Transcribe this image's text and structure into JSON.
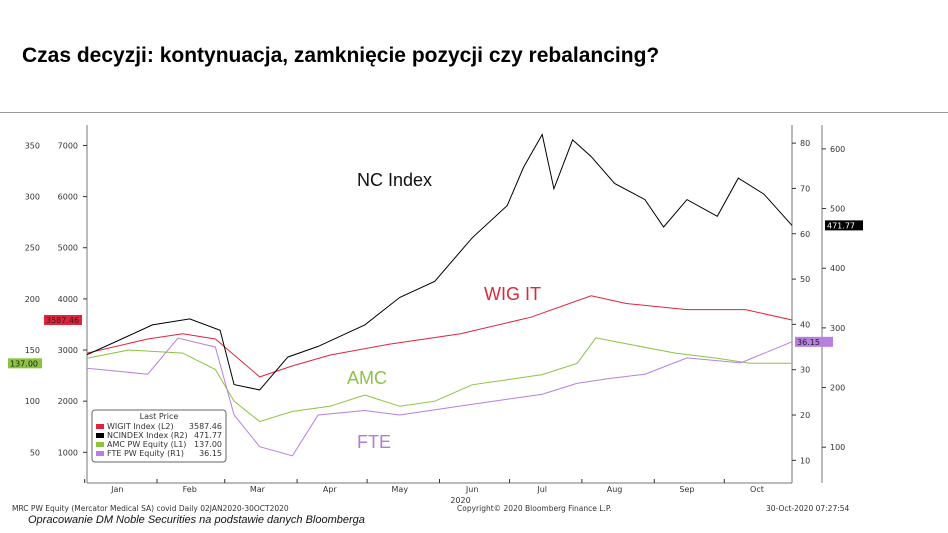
{
  "title": "Czas decyzji: kontynuacja, zamknięcie pozycji czy rebalancing?",
  "source_note": "Opracowanie DM Noble Securities na podstawie danych Bloomberga",
  "footer": {
    "left": "MRC PW Equity (Mercator Medical SA) covid  Daily 02JAN2020-30OCT2020",
    "center": "Copyright© 2020 Bloomberg Finance L.P.",
    "right": "30-Oct-2020 07:27:54"
  },
  "chart_data": {
    "type": "line",
    "x_range": [
      "2020-01-02",
      "2020-10-30"
    ],
    "x_tick_labels": [
      "Jan",
      "Feb",
      "Mar",
      "Apr",
      "May",
      "Jun",
      "Jul",
      "Aug",
      "Sep",
      "Oct"
    ],
    "x_year_label": "2020",
    "axes": {
      "L1": {
        "range": [
          20,
          370
        ],
        "ticks": [
          50,
          100,
          150,
          200,
          250,
          300,
          350
        ]
      },
      "L2": {
        "range": [
          400,
          7400
        ],
        "ticks": [
          1000,
          2000,
          3000,
          4000,
          5000,
          6000,
          7000
        ]
      },
      "R1": {
        "range": [
          5,
          84
        ],
        "ticks": [
          10,
          20,
          30,
          40,
          50,
          60,
          70,
          80
        ]
      },
      "R2": {
        "range": [
          40,
          640
        ],
        "ticks": [
          100,
          200,
          300,
          400,
          500,
          600
        ]
      }
    },
    "legend": {
      "title": "Last Price",
      "placement": "bottom-left"
    },
    "series": [
      {
        "name": "WIGIT Index  (L2)",
        "last": "3587.46",
        "axis": "L2",
        "color": "#e0243c",
        "annotation": "WIG IT",
        "x": [
          "2020-01-02",
          "2020-01-28",
          "2020-02-12",
          "2020-02-26",
          "2020-03-16",
          "2020-03-30",
          "2020-04-15",
          "2020-05-10",
          "2020-06-10",
          "2020-07-10",
          "2020-08-05",
          "2020-08-20",
          "2020-09-15",
          "2020-10-10",
          "2020-10-30"
        ],
        "y": [
          2940,
          3215,
          3320,
          3215,
          2475,
          2690,
          2900,
          3110,
          3320,
          3640,
          4060,
          3910,
          3790,
          3790,
          3587.46
        ]
      },
      {
        "name": "NCINDEX Index  (R2)",
        "last": "471.77",
        "axis": "R2",
        "color": "#000000",
        "annotation": "NC Index",
        "x": [
          "2020-01-02",
          "2020-01-15",
          "2020-01-30",
          "2020-02-15",
          "2020-02-28",
          "2020-03-05",
          "2020-03-16",
          "2020-03-28",
          "2020-04-10",
          "2020-04-30",
          "2020-05-15",
          "2020-05-30",
          "2020-06-15",
          "2020-06-30",
          "2020-07-07",
          "2020-07-15",
          "2020-07-20",
          "2020-07-28",
          "2020-08-05",
          "2020-08-15",
          "2020-08-28",
          "2020-09-05",
          "2020-09-15",
          "2020-09-28",
          "2020-10-07",
          "2020-10-18",
          "2020-10-30"
        ],
        "y": [
          255,
          278,
          305,
          315,
          296,
          205,
          196,
          251,
          269,
          305,
          351,
          378,
          451,
          505,
          569,
          624,
          533,
          615,
          587,
          542,
          515,
          469,
          515,
          487,
          551,
          524,
          471.77
        ]
      },
      {
        "name": "AMC PW Equity  (L1)",
        "last": "137.00",
        "axis": "L1",
        "color": "#8bc43f",
        "annotation": "AMC",
        "x": [
          "2020-01-02",
          "2020-01-20",
          "2020-02-12",
          "2020-02-26",
          "2020-03-05",
          "2020-03-16",
          "2020-03-30",
          "2020-04-15",
          "2020-04-30",
          "2020-05-15",
          "2020-05-30",
          "2020-06-15",
          "2020-06-30",
          "2020-07-15",
          "2020-07-30",
          "2020-08-07",
          "2020-08-18",
          "2020-09-10",
          "2020-09-28",
          "2020-10-12",
          "2020-10-30"
        ],
        "y": [
          142,
          150,
          147,
          131,
          100,
          80,
          90,
          95,
          106,
          95,
          100,
          116,
          121,
          126,
          137,
          162,
          157,
          147,
          142,
          137,
          137
        ]
      },
      {
        "name": "FTE PW Equity  (R1)",
        "last": "36.15",
        "axis": "R1",
        "color": "#b77fe0",
        "annotation": "FTE",
        "x": [
          "2020-01-02",
          "2020-01-28",
          "2020-02-10",
          "2020-02-26",
          "2020-03-05",
          "2020-03-16",
          "2020-03-30",
          "2020-04-10",
          "2020-04-30",
          "2020-05-15",
          "2020-06-10",
          "2020-06-30",
          "2020-07-15",
          "2020-07-30",
          "2020-08-12",
          "2020-08-28",
          "2020-09-15",
          "2020-10-08",
          "2020-10-30"
        ],
        "y": [
          30.3,
          29,
          37,
          35,
          20,
          13,
          11,
          20,
          21,
          20,
          22,
          23.5,
          24.6,
          27,
          28,
          29,
          32.6,
          31.5,
          36.15
        ]
      }
    ]
  }
}
